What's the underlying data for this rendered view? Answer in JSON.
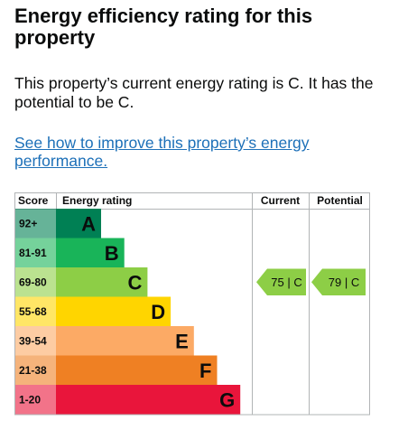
{
  "heading": "Energy efficiency rating for this property",
  "summary": "This property’s current energy rating is C. It has the potential to be C.",
  "improve_link": "See how to improve this property’s energy performance.",
  "chart_data": {
    "type": "table",
    "headers": {
      "score": "Score",
      "rating": "Energy rating",
      "current": "Current",
      "potential": "Potential"
    },
    "bands": [
      {
        "score": "92+",
        "letter": "A",
        "color": "#008054",
        "text_color": "#0b0c0c"
      },
      {
        "score": "81-91",
        "letter": "B",
        "color": "#19b459",
        "text_color": "#0b0c0c"
      },
      {
        "score": "69-80",
        "letter": "C",
        "color": "#8dce46",
        "text_color": "#0b0c0c"
      },
      {
        "score": "55-68",
        "letter": "D",
        "color": "#ffd500",
        "text_color": "#0b0c0c"
      },
      {
        "score": "39-54",
        "letter": "E",
        "color": "#fcaa65",
        "text_color": "#0b0c0c"
      },
      {
        "score": "21-38",
        "letter": "F",
        "color": "#ef8023",
        "text_color": "#0b0c0c"
      },
      {
        "score": "1-20",
        "letter": "G",
        "color": "#e9153b",
        "text_color": "#0b0c0c"
      }
    ],
    "current": {
      "value": 75,
      "band": "C",
      "label": "75 | C",
      "color": "#8dce46"
    },
    "potential": {
      "value": 79,
      "band": "C",
      "label": "79 | C",
      "color": "#8dce46"
    }
  }
}
